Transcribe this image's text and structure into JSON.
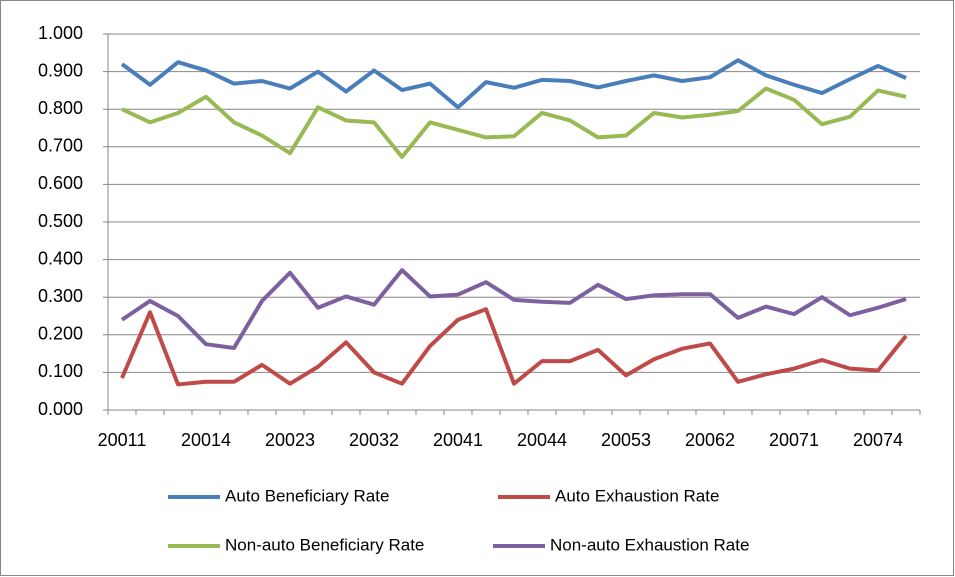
{
  "chart_data": {
    "type": "line",
    "categories": [
      "20011",
      null,
      null,
      "20014",
      null,
      null,
      "20023",
      null,
      null,
      "20032",
      null,
      null,
      "20041",
      null,
      null,
      "20044",
      null,
      null,
      "20053",
      null,
      null,
      "20062",
      null,
      null,
      "20071",
      null,
      null,
      "20074",
      null
    ],
    "series": [
      {
        "name": "Auto Beneficiary Rate",
        "color": "#4a7ebb",
        "values": [
          0.92,
          0.865,
          0.925,
          0.903,
          0.868,
          0.875,
          0.855,
          0.9,
          0.847,
          0.903,
          0.851,
          0.868,
          0.805,
          0.872,
          0.857,
          0.878,
          0.875,
          0.858,
          0.875,
          0.89,
          0.875,
          0.885,
          0.93,
          0.89,
          0.865,
          0.843,
          0.88,
          0.915,
          0.883
        ]
      },
      {
        "name": "Auto Exhaustion Rate",
        "color": "#be4b48",
        "values": [
          0.085,
          0.26,
          0.068,
          0.075,
          0.075,
          0.12,
          0.07,
          0.115,
          0.18,
          0.1,
          0.07,
          0.17,
          0.24,
          0.268,
          0.07,
          0.13,
          0.13,
          0.16,
          0.092,
          0.135,
          0.163,
          0.177,
          0.075,
          0.095,
          0.11,
          0.133,
          0.11,
          0.105,
          0.197
        ]
      },
      {
        "name": "Non-auto Beneficiary Rate",
        "color": "#98b954",
        "values": [
          0.8,
          0.765,
          0.79,
          0.833,
          0.765,
          0.73,
          0.683,
          0.805,
          0.77,
          0.765,
          0.673,
          0.765,
          0.745,
          0.725,
          0.728,
          0.79,
          0.77,
          0.725,
          0.73,
          0.79,
          0.778,
          0.785,
          0.795,
          0.855,
          0.825,
          0.76,
          0.78,
          0.85,
          0.833
        ]
      },
      {
        "name": "Non-auto Exhaustion Rate",
        "color": "#7d60a0",
        "values": [
          0.24,
          0.29,
          0.25,
          0.175,
          0.165,
          0.29,
          0.365,
          0.272,
          0.302,
          0.28,
          0.372,
          0.302,
          0.307,
          0.34,
          0.293,
          0.288,
          0.285,
          0.333,
          0.295,
          0.305,
          0.308,
          0.308,
          0.245,
          0.275,
          0.255,
          0.3,
          0.252,
          0.272,
          0.295
        ]
      }
    ],
    "ylim": [
      0,
      1
    ],
    "yticks": [
      {
        "value": 0,
        "label": "0.000"
      },
      {
        "value": 0.1,
        "label": "0.100"
      },
      {
        "value": 0.2,
        "label": "0.200"
      },
      {
        "value": 0.3,
        "label": "0.300"
      },
      {
        "value": 0.4,
        "label": "0.400"
      },
      {
        "value": 0.5,
        "label": "0.500"
      },
      {
        "value": 0.6,
        "label": "0.600"
      },
      {
        "value": 0.7,
        "label": "0.700"
      },
      {
        "value": 0.8,
        "label": "0.800"
      },
      {
        "value": 0.9,
        "label": "0.900"
      },
      {
        "value": 1,
        "label": "1.000"
      }
    ],
    "grid": true,
    "legend": "bottom"
  }
}
